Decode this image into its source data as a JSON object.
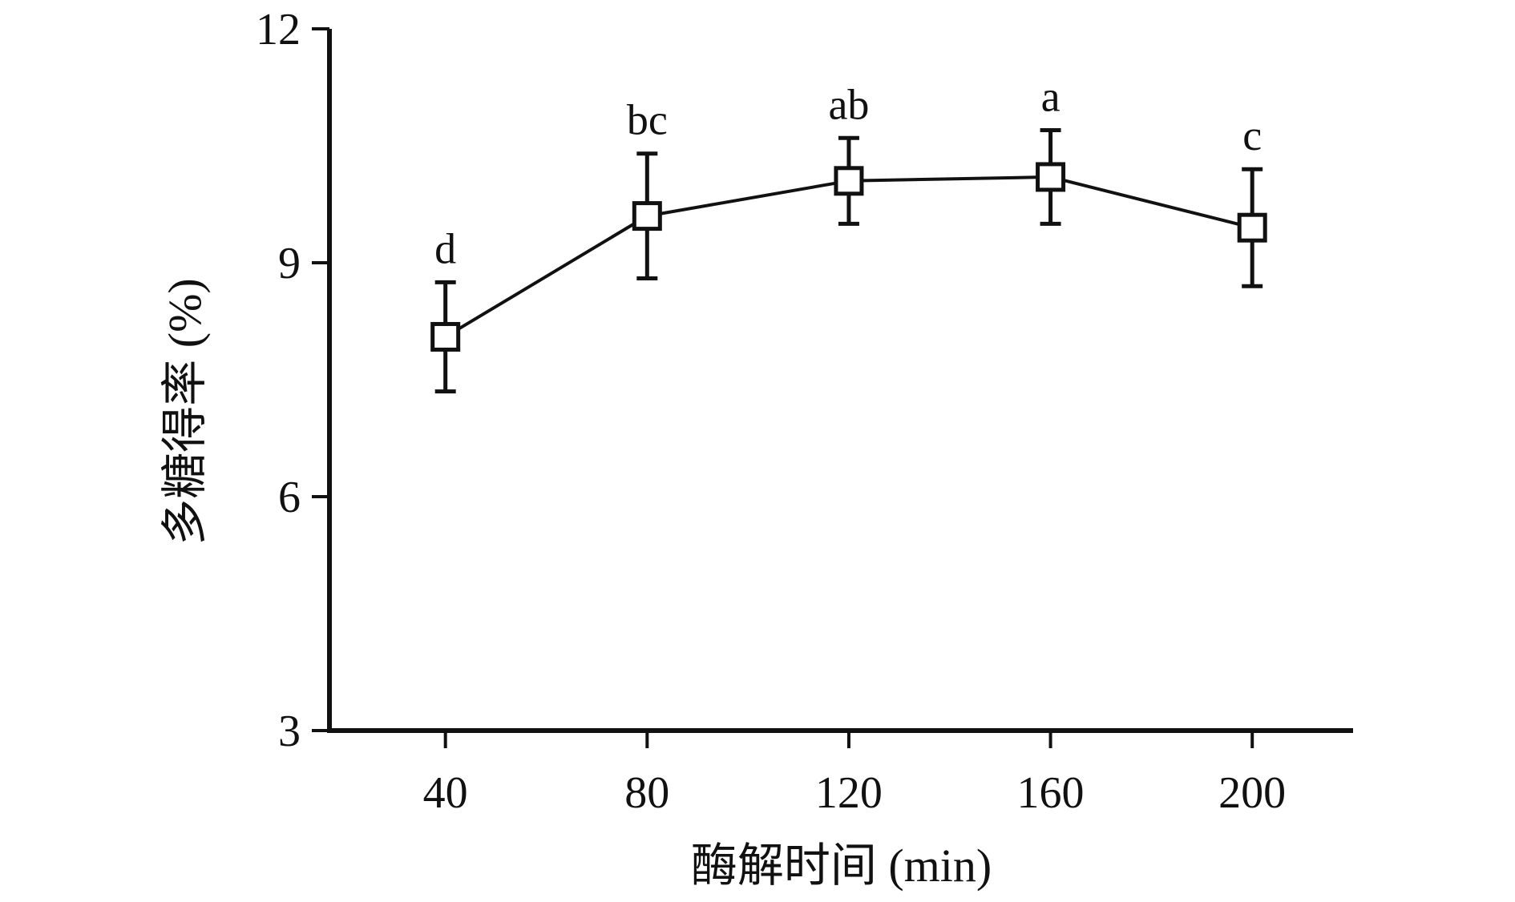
{
  "chart_data": {
    "type": "line",
    "title": "",
    "xlabel": "酶解时间 (min)",
    "ylabel": "多糖得率 (%)",
    "x": [
      40,
      80,
      120,
      160,
      200
    ],
    "xticks": [
      "40",
      "80",
      "120",
      "160",
      "200"
    ],
    "xlim": [
      17,
      220
    ],
    "ylim": [
      3,
      12
    ],
    "yticks": [
      "3",
      "6",
      "9",
      "12"
    ],
    "grid": false,
    "legend": "none",
    "marker": "open-square",
    "colors": {
      "line": "#111111",
      "axis": "#111111",
      "text": "#111111"
    },
    "series": [
      {
        "values": [
          8.05,
          9.6,
          10.05,
          10.1,
          9.45
        ],
        "error": [
          0.7,
          0.8,
          0.55,
          0.6,
          0.75
        ],
        "significance": [
          "d",
          "bc",
          "ab",
          "a",
          "c"
        ]
      }
    ]
  }
}
